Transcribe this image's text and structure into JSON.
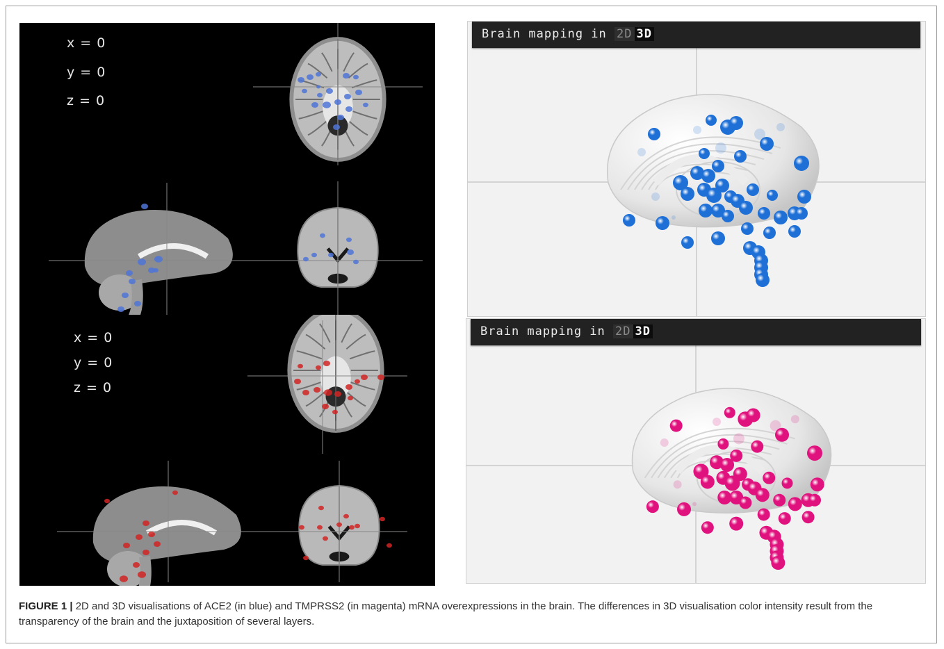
{
  "panel_2d": {
    "top": {
      "coords": [
        "x = 0",
        "y = 0",
        "z = 0"
      ],
      "accent": "#4f74d6"
    },
    "bottom": {
      "coords": [
        "x = 0",
        "y = 0",
        "z = 0"
      ],
      "accent": "#d02424"
    }
  },
  "panel_3d": {
    "top": {
      "title": "Brain mapping in",
      "btn_2d": "2D",
      "btn_3d": "3D",
      "accent": "#1e6fd6"
    },
    "bottom": {
      "title": "Brain mapping in",
      "btn_2d": "2D",
      "btn_3d": "3D",
      "accent": "#e0127e"
    }
  },
  "caption": {
    "label": "FIGURE 1 |",
    "text": " 2D and 3D visualisations of ACE2 (in blue) and TMPRSS2 (in magenta) mRNA overexpressions in the brain. The differences in 3D visualisation color intensity result from the transparency of the brain and the juxtaposition of several layers."
  }
}
